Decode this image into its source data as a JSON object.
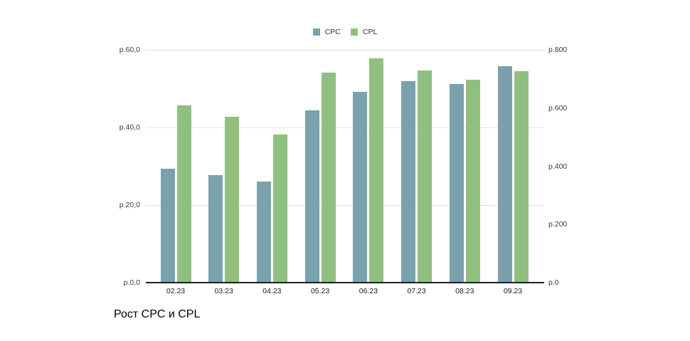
{
  "chart_data": {
    "type": "bar",
    "title": "Рост CPC и CPL",
    "categories": [
      "02.23",
      "03.23",
      "04.23",
      "05.23",
      "06.23",
      "07.23",
      "08.23",
      "09.23"
    ],
    "series": [
      {
        "name": "CPC",
        "axis": "left",
        "color": "#7AA1AC",
        "values": [
          29.4,
          27.7,
          26.1,
          44.4,
          49.2,
          51.9,
          51.2,
          55.8
        ]
      },
      {
        "name": "CPL",
        "axis": "right",
        "color": "#8FC07F",
        "values": [
          609,
          570,
          509,
          722,
          771,
          729,
          697,
          727
        ]
      }
    ],
    "left_axis": {
      "min": 0,
      "max": 60,
      "ticks": [
        {
          "label": "р.60,0",
          "value": 60
        },
        {
          "label": "р.40,0",
          "value": 40
        },
        {
          "label": "р.20,0",
          "value": 20
        },
        {
          "label": "р.0,0",
          "value": 0
        }
      ]
    },
    "right_axis": {
      "min": 0,
      "max": 800,
      "ticks": [
        {
          "label": "р.800",
          "value": 800
        },
        {
          "label": "р.600",
          "value": 600
        },
        {
          "label": "р.400",
          "value": 400
        },
        {
          "label": "р.200",
          "value": 200
        },
        {
          "label": "р.0",
          "value": 0
        }
      ]
    },
    "legend": {
      "position": "top",
      "items": [
        {
          "label": "CPC",
          "color": "#7AA1AC"
        },
        {
          "label": "CPL",
          "color": "#8FC07F"
        }
      ]
    },
    "grid": true
  },
  "colors": {
    "cpc": "#7AA1AC",
    "cpl": "#8FC07F",
    "gridline": "#e0e0e0",
    "axis_line": "#1f1f1f",
    "tick_text": "#3a3a3a",
    "x_label_text": "#1c1c1c",
    "title_text": "#000000",
    "background": "#ffffff"
  }
}
